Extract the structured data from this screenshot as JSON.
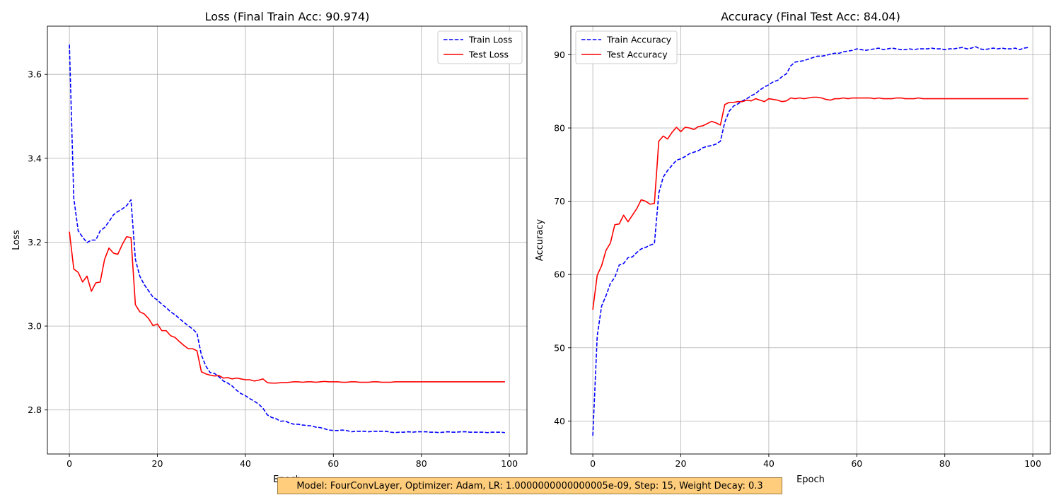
{
  "footer": {
    "text": "Model: FourConvLayer, Optimizer: Adam, LR: 1.0000000000000005e-09, Step: 15, Weight Decay: 0.3"
  },
  "chart_data": [
    {
      "type": "line",
      "title": "Loss (Final Train Acc: 90.974)",
      "xlabel": "Epoch",
      "ylabel": "Loss",
      "xlim": [
        -5,
        104
      ],
      "ylim": [
        2.695,
        3.715
      ],
      "xticks": [
        0,
        20,
        40,
        60,
        80,
        100
      ],
      "yticks": [
        2.8,
        3.0,
        3.2,
        3.4,
        3.6
      ],
      "grid": true,
      "legend_position": "top-right",
      "series": [
        {
          "name": "Train Loss",
          "color": "#0000ff",
          "style": "dashed",
          "values": [
            3.671,
            3.305,
            3.227,
            3.212,
            3.199,
            3.205,
            3.205,
            3.227,
            3.235,
            3.249,
            3.265,
            3.273,
            3.279,
            3.287,
            3.301,
            3.159,
            3.119,
            3.099,
            3.084,
            3.069,
            3.062,
            3.052,
            3.044,
            3.034,
            3.027,
            3.018,
            3.009,
            3.001,
            2.993,
            2.983,
            2.931,
            2.905,
            2.889,
            2.887,
            2.879,
            2.869,
            2.864,
            2.857,
            2.847,
            2.839,
            2.834,
            2.827,
            2.821,
            2.814,
            2.804,
            2.788,
            2.782,
            2.779,
            2.773,
            2.774,
            2.769,
            2.766,
            2.766,
            2.764,
            2.763,
            2.762,
            2.759,
            2.758,
            2.755,
            2.752,
            2.751,
            2.751,
            2.752,
            2.751,
            2.748,
            2.749,
            2.749,
            2.749,
            2.748,
            2.749,
            2.749,
            2.749,
            2.749,
            2.747,
            2.746,
            2.747,
            2.747,
            2.748,
            2.747,
            2.748,
            2.748,
            2.748,
            2.747,
            2.747,
            2.746,
            2.747,
            2.748,
            2.747,
            2.747,
            2.748,
            2.748,
            2.747,
            2.747,
            2.747,
            2.747,
            2.746,
            2.747,
            2.747,
            2.747,
            2.746
          ]
        },
        {
          "name": "Test Loss",
          "color": "#ff0000",
          "style": "solid",
          "values": [
            3.225,
            3.136,
            3.128,
            3.105,
            3.119,
            3.083,
            3.103,
            3.105,
            3.159,
            3.186,
            3.174,
            3.171,
            3.194,
            3.213,
            3.211,
            3.051,
            3.034,
            3.029,
            3.018,
            3.001,
            3.005,
            2.989,
            2.989,
            2.977,
            2.973,
            2.963,
            2.954,
            2.946,
            2.946,
            2.941,
            2.891,
            2.886,
            2.883,
            2.881,
            2.882,
            2.876,
            2.877,
            2.874,
            2.876,
            2.874,
            2.872,
            2.872,
            2.869,
            2.871,
            2.874,
            2.865,
            2.864,
            2.864,
            2.865,
            2.865,
            2.866,
            2.867,
            2.867,
            2.866,
            2.867,
            2.867,
            2.866,
            2.867,
            2.868,
            2.867,
            2.867,
            2.867,
            2.866,
            2.866,
            2.867,
            2.867,
            2.866,
            2.866,
            2.866,
            2.867,
            2.867,
            2.866,
            2.866,
            2.866,
            2.867,
            2.867,
            2.867,
            2.867,
            2.867,
            2.867,
            2.867,
            2.867,
            2.867,
            2.867,
            2.867,
            2.867,
            2.867,
            2.867,
            2.867,
            2.867,
            2.867,
            2.867,
            2.867,
            2.867,
            2.867,
            2.867,
            2.867,
            2.867,
            2.867,
            2.867
          ]
        }
      ]
    },
    {
      "type": "line",
      "title": "Accuracy (Final Test Acc: 84.04)",
      "xlabel": "Epoch",
      "ylabel": "Accuracy",
      "xlim": [
        -5,
        104
      ],
      "ylim": [
        35.5,
        93.9
      ],
      "xticks": [
        0,
        20,
        40,
        60,
        80,
        100
      ],
      "yticks": [
        40,
        50,
        60,
        70,
        80,
        90
      ],
      "grid": true,
      "legend_position": "top-left",
      "series": [
        {
          "name": "Train Accuracy",
          "color": "#0000ff",
          "style": "dashed",
          "values": [
            38.0,
            51.6,
            55.7,
            57.1,
            58.8,
            59.6,
            61.3,
            61.5,
            62.3,
            62.4,
            63.0,
            63.5,
            63.7,
            64.0,
            64.2,
            71.1,
            73.3,
            74.2,
            74.9,
            75.6,
            75.8,
            76.1,
            76.5,
            76.7,
            76.9,
            77.3,
            77.5,
            77.6,
            77.8,
            78.2,
            80.8,
            82.3,
            83.0,
            83.3,
            83.7,
            84.0,
            84.4,
            84.7,
            85.2,
            85.6,
            85.9,
            86.3,
            86.5,
            87.0,
            87.4,
            88.5,
            89.0,
            89.1,
            89.2,
            89.4,
            89.6,
            89.8,
            89.8,
            89.9,
            90.1,
            90.2,
            90.2,
            90.4,
            90.5,
            90.6,
            90.8,
            90.7,
            90.6,
            90.7,
            90.8,
            90.9,
            90.7,
            90.8,
            90.9,
            90.8,
            90.7,
            90.7,
            90.8,
            90.7,
            90.8,
            90.8,
            90.8,
            90.9,
            90.8,
            90.8,
            90.7,
            90.8,
            90.8,
            90.9,
            91.0,
            90.8,
            90.9,
            91.1,
            90.8,
            90.7,
            90.8,
            90.9,
            90.8,
            90.9,
            90.8,
            90.8,
            90.9,
            90.7,
            90.9,
            91.0
          ]
        },
        {
          "name": "Test Accuracy",
          "color": "#ff0000",
          "style": "solid",
          "values": [
            55.2,
            59.9,
            61.2,
            63.3,
            64.3,
            66.8,
            66.9,
            68.1,
            67.2,
            68.1,
            69.0,
            70.2,
            70.0,
            69.6,
            69.7,
            78.2,
            78.9,
            78.5,
            79.4,
            80.1,
            79.5,
            80.1,
            80.0,
            79.8,
            80.2,
            80.3,
            80.6,
            80.9,
            80.7,
            80.4,
            83.2,
            83.5,
            83.5,
            83.6,
            83.6,
            83.8,
            83.7,
            84.0,
            83.8,
            83.6,
            84.0,
            83.9,
            83.8,
            83.6,
            83.7,
            84.1,
            84.0,
            84.1,
            84.0,
            84.1,
            84.2,
            84.2,
            84.1,
            83.9,
            83.8,
            84.0,
            84.0,
            84.1,
            84.0,
            84.1,
            84.1,
            84.1,
            84.1,
            84.1,
            84.0,
            84.1,
            84.0,
            84.0,
            84.0,
            84.1,
            84.1,
            84.0,
            84.0,
            84.0,
            84.1,
            84.0,
            84.0,
            84.0,
            84.0,
            84.0,
            84.0,
            84.0,
            84.0,
            84.0,
            84.0,
            84.0,
            84.0,
            84.0,
            84.0,
            84.0,
            84.0,
            84.0,
            84.0,
            84.0,
            84.0,
            84.0,
            84.0,
            84.0,
            84.0,
            84.0
          ]
        }
      ]
    }
  ]
}
